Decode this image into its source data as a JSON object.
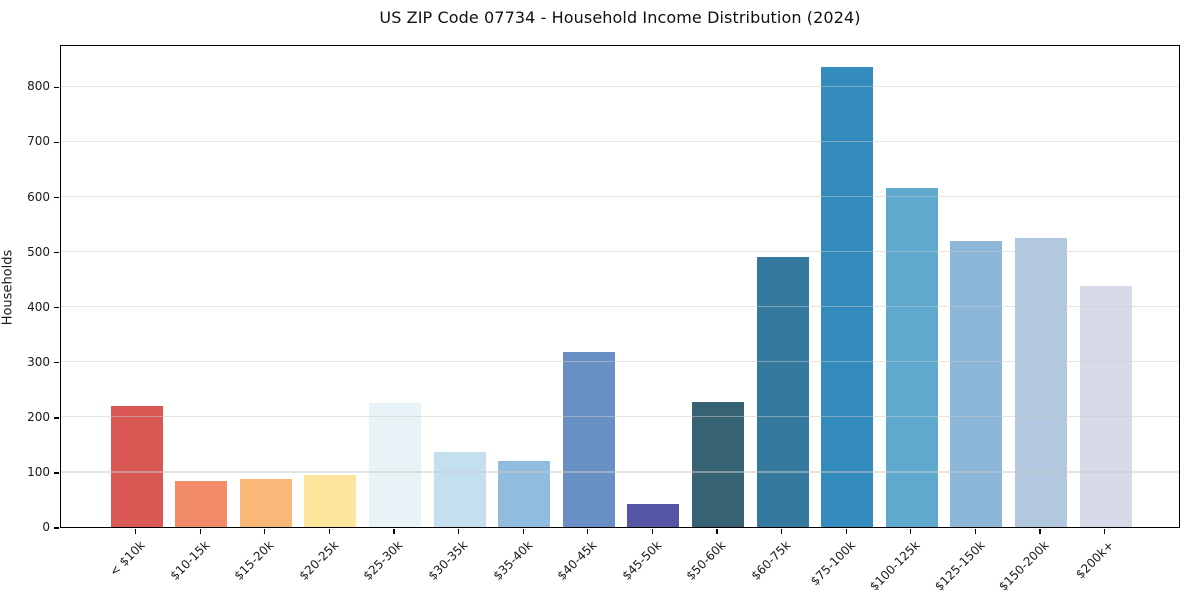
{
  "chart_data": {
    "type": "bar",
    "title": "US ZIP Code 07734 - Household Income Distribution (2024)",
    "xlabel": "",
    "ylabel": "Households",
    "ylim": [
      0,
      877
    ],
    "yticks": [
      0,
      100,
      200,
      300,
      400,
      500,
      600,
      700,
      800
    ],
    "grid": "horizontal gridlines, light gray, drawn over bars",
    "legend": "none",
    "categories": [
      "< $10k",
      "$10-15k",
      "$15-20k",
      "$20-25k",
      "$25-30k",
      "$30-35k",
      "$35-40k",
      "$40-45k",
      "$45-50k",
      "$50-60k",
      "$60-75k",
      "$75-100k",
      "$100-125k",
      "$125-150k",
      "$150-200k",
      "$200k+"
    ],
    "values": [
      220,
      83,
      88,
      94,
      226,
      136,
      120,
      318,
      42,
      227,
      490,
      835,
      615,
      520,
      525,
      438
    ],
    "bar_colors": [
      "#d95853",
      "#f28c68",
      "#fab878",
      "#fde59e",
      "#e8f3f8",
      "#c4dfed",
      "#90bcdf",
      "#6890c4",
      "#5556a6",
      "#366273",
      "#35799f",
      "#348bbe",
      "#5fa8ce",
      "#8db7d8",
      "#b2c8df",
      "#d7dae8"
    ]
  },
  "colors": {
    "background": "#ffffff",
    "axis_spine": "#000000",
    "grid": "#e5e5e5",
    "text": "#1a1a1a"
  }
}
